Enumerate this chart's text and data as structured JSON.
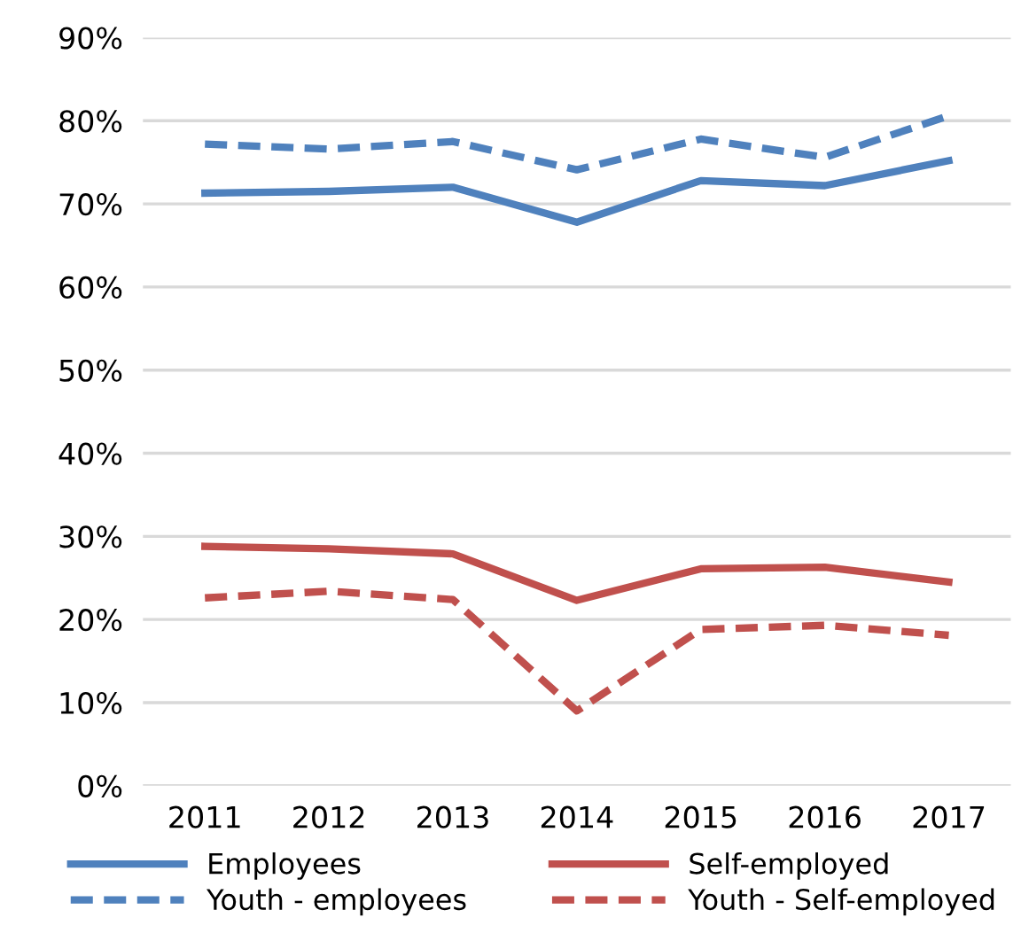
{
  "chart_data": {
    "type": "line",
    "categories": [
      "2011",
      "2012",
      "2013",
      "2014",
      "2015",
      "2016",
      "2017"
    ],
    "series": [
      {
        "name": "Employees",
        "color": "#4f81bd",
        "line_style": "solid",
        "values": [
          71.3,
          71.5,
          72.0,
          67.8,
          72.8,
          72.2,
          75.2
        ]
      },
      {
        "name": "Self-employed",
        "color": "#c0504d",
        "line_style": "solid",
        "values": [
          28.8,
          28.5,
          27.9,
          22.3,
          26.1,
          26.3,
          24.5
        ]
      },
      {
        "name": "Youth - employees",
        "color": "#4f81bd",
        "line_style": "dashed",
        "values": [
          77.2,
          76.6,
          77.5,
          74.1,
          77.8,
          75.6,
          80.6
        ]
      },
      {
        "name": "Youth - Self-employed",
        "color": "#c0504d",
        "line_style": "dashed",
        "values": [
          22.6,
          23.4,
          22.4,
          9.0,
          18.8,
          19.3,
          18.1
        ]
      }
    ],
    "ylim": [
      0,
      90
    ],
    "yticks": [
      {
        "value": 0,
        "label": "0%"
      },
      {
        "value": 10,
        "label": "10%"
      },
      {
        "value": 20,
        "label": "20%"
      },
      {
        "value": 30,
        "label": "30%"
      },
      {
        "value": 40,
        "label": "40%"
      },
      {
        "value": 50,
        "label": "50%"
      },
      {
        "value": 60,
        "label": "60%"
      },
      {
        "value": 70,
        "label": "70%"
      },
      {
        "value": 80,
        "label": "80%"
      },
      {
        "value": 90,
        "label": "90%"
      }
    ],
    "grid": "y",
    "legend": "bottom",
    "marker": "none"
  }
}
